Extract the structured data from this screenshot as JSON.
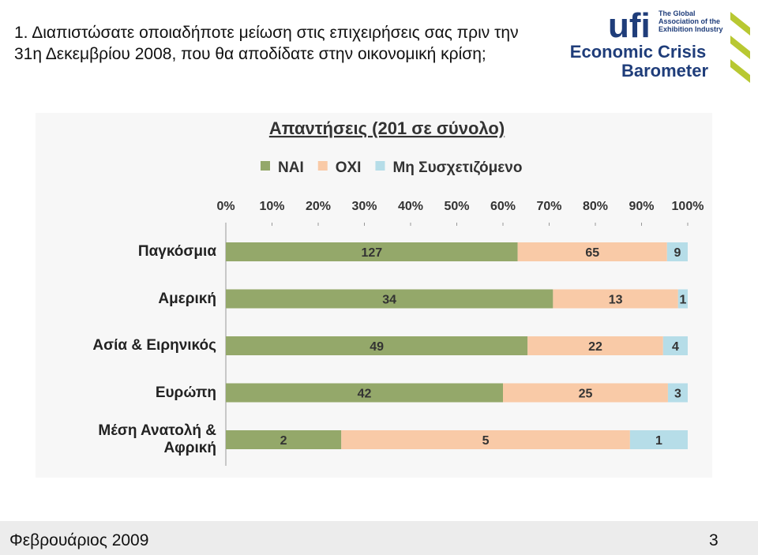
{
  "slide": {
    "title": "1. Διαπιστώσατε οποιαδήποτε μείωση στις επιχειρήσεις σας πριν την 31η Δεκεμβρίου 2008, που θα αποδίδατε στην οικονομική κρίση;",
    "logo": {
      "brand": "ufi",
      "tagline": "The Global Association of the Exhibition Industry",
      "line1": "Economic Crisis",
      "line2": "Barometer"
    },
    "footer": {
      "date": "Φεβρουάριος 2009",
      "page": "3"
    }
  },
  "chart_data": {
    "type": "bar",
    "orientation": "horizontal",
    "stacked": "percent",
    "title": "Απαντήσεις (201 σε σύνολο)",
    "categories": [
      "Παγκόσμια",
      "Αμερική",
      "Ασία & Ειρηνικός",
      "Ευρώπη",
      "Μέση Ανατολή & Αφρική"
    ],
    "series": [
      {
        "name": "ΝΑΙ",
        "color": "#94a86a",
        "values": [
          127,
          34,
          49,
          42,
          2
        ]
      },
      {
        "name": "ΟΧΙ",
        "color": "#f9caa7",
        "values": [
          65,
          13,
          22,
          25,
          5
        ]
      },
      {
        "name": "Μη Συσχετιζόμενο",
        "color": "#b6dde8",
        "values": [
          9,
          1,
          4,
          3,
          1
        ]
      }
    ],
    "xlim": [
      0,
      100
    ],
    "xticks": [
      {
        "value": 0,
        "label": "0%"
      },
      {
        "value": 10,
        "label": "10%"
      },
      {
        "value": 20,
        "label": "20%"
      },
      {
        "value": 30,
        "label": "30%"
      },
      {
        "value": 40,
        "label": "40%"
      },
      {
        "value": 50,
        "label": "50%"
      },
      {
        "value": 60,
        "label": "60%"
      },
      {
        "value": 70,
        "label": "70%"
      },
      {
        "value": 80,
        "label": "80%"
      },
      {
        "value": 90,
        "label": "90%"
      },
      {
        "value": 100,
        "label": "100%"
      }
    ],
    "legend": "top"
  }
}
